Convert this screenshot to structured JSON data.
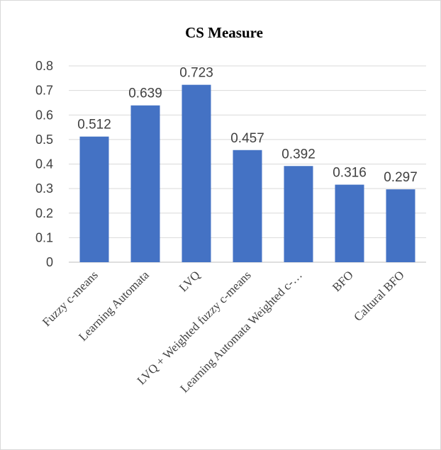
{
  "chart_data": {
    "type": "bar",
    "title": "CS Measure",
    "categories": [
      "Fuzzy c-means",
      "Learning Automata",
      "LVQ",
      "LVQ + Weighted fuzzy c-means",
      "Learning Automata Weighted c-…",
      "BFO",
      "Caltural BFO"
    ],
    "values": [
      0.512,
      0.639,
      0.723,
      0.457,
      0.392,
      0.316,
      0.297
    ],
    "data_labels": [
      "0.512",
      "0.639",
      "0.723",
      "0.457",
      "0.392",
      "0.316",
      "0.297"
    ],
    "yticks": [
      "0",
      "0.1",
      "0.2",
      "0.3",
      "0.4",
      "0.5",
      "0.6",
      "0.7",
      "0.8"
    ],
    "ylim": [
      0,
      0.8
    ],
    "xlabel": "",
    "ylabel": "",
    "grid": true,
    "legend": "none",
    "bar_color": "#4472c4"
  }
}
